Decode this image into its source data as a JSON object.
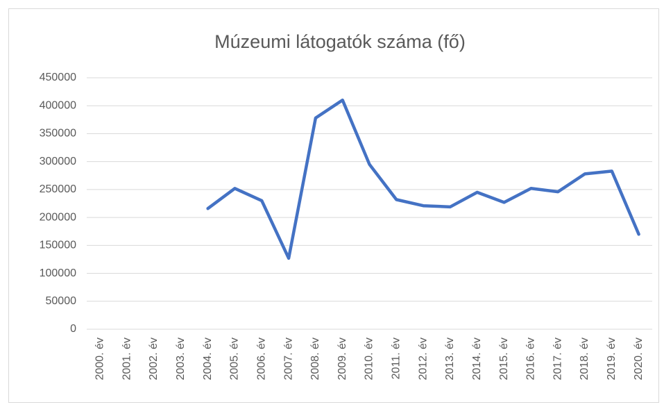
{
  "chart_data": {
    "type": "line",
    "title": "Múzeumi látogatók száma (fő)",
    "categories": [
      "2000. év",
      "2001. év",
      "2002. év",
      "2003. év",
      "2004. év",
      "2005. év",
      "2006. év",
      "2007. év",
      "2008. év",
      "2009. év",
      "2010. év",
      "2011. év",
      "2012. év",
      "2013. év",
      "2014. év",
      "2015. év",
      "2016. év",
      "2017. év",
      "2018. év",
      "2019. év",
      "2020. év"
    ],
    "series": [
      {
        "name": "Múzeumi látogatók száma (fő)",
        "color": "#4472c4",
        "values": [
          null,
          null,
          null,
          null,
          216000,
          252000,
          230000,
          127000,
          378000,
          410000,
          295000,
          232000,
          221000,
          219000,
          245000,
          227000,
          252000,
          246000,
          278000,
          283000,
          170000
        ]
      }
    ],
    "ylim": [
      0,
      450000
    ],
    "yticks": [
      0,
      50000,
      100000,
      150000,
      200000,
      250000,
      300000,
      350000,
      400000,
      450000
    ],
    "grid": true
  }
}
